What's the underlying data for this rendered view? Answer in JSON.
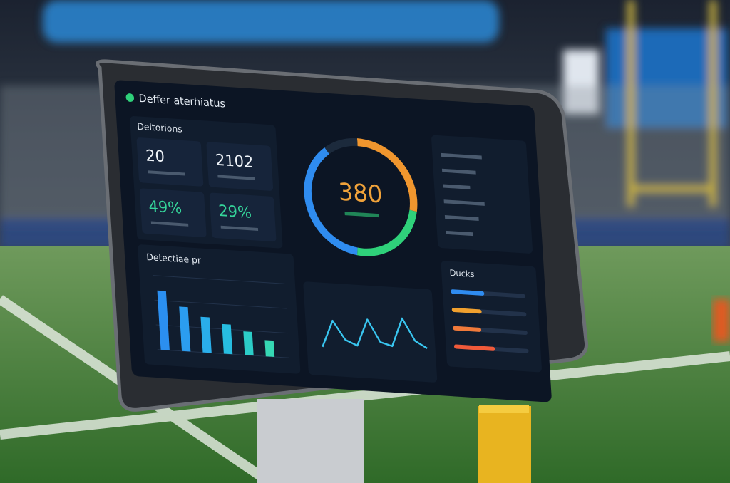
{
  "header": {
    "title": "Deffer aterhiatus"
  },
  "stats": {
    "title": "Deltorions",
    "cards": [
      "20",
      "2102",
      "49%",
      "29%"
    ]
  },
  "gauge": {
    "value": "380",
    "segments": [
      {
        "color": "#f0962e",
        "value": 28
      },
      {
        "color": "#2fd17a",
        "value": 24
      },
      {
        "color": "#2f8cf0",
        "value": 38
      },
      {
        "color": "#1c2a3c",
        "value": 10
      }
    ]
  },
  "bar_chart": {
    "title": "Detectiae pr",
    "values": [
      80,
      60,
      48,
      40,
      32,
      22
    ],
    "colors": [
      "#2b8ff0",
      "#2b9df0",
      "#2aaeea",
      "#27bde0",
      "#2ccdc8",
      "#36d8b4"
    ],
    "ylim": [
      0,
      100
    ]
  },
  "line_chart": {
    "values": [
      20,
      52,
      30,
      24,
      56,
      30,
      26,
      60,
      34,
      26
    ],
    "ylim": [
      0,
      80
    ],
    "color": "#39c6f0"
  },
  "ducks": {
    "title": "Ducks",
    "values": [
      45,
      40,
      38,
      55
    ],
    "colors": [
      "#2f8cf0",
      "#f0a02e",
      "#f07a3a",
      "#f05a3a"
    ],
    "xlim": [
      0,
      100
    ]
  },
  "gauge_center_value_color": "#f0a23a"
}
